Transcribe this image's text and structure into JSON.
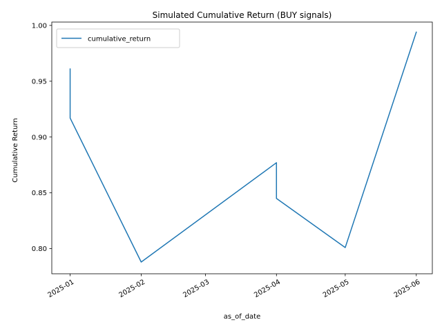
{
  "chart_data": {
    "type": "line",
    "title": "Simulated Cumulative Return (BUY signals)",
    "xlabel": "as_of_date",
    "ylabel": "Cumulative Return",
    "x_type": "date",
    "xlim": [
      "2024-12-24",
      "2025-06-08"
    ],
    "ylim": [
      0.7775,
      1.003
    ],
    "x_ticks": [
      "2025-01-01",
      "2025-02-01",
      "2025-03-01",
      "2025-04-01",
      "2025-05-01",
      "2025-06-01"
    ],
    "x_tick_labels": [
      "2025-01",
      "2025-02",
      "2025-03",
      "2025-04",
      "2025-05",
      "2025-06"
    ],
    "y_ticks": [
      0.8,
      0.85,
      0.9,
      0.95,
      1.0
    ],
    "y_tick_labels": [
      "0.80",
      "0.85",
      "0.90",
      "0.95",
      "1.00"
    ],
    "legend_position": "top-left",
    "grid": false,
    "series": [
      {
        "name": "cumulative_return",
        "color": "#1f77b4",
        "x": [
          "2025-01-01",
          "2025-01-01",
          "2025-02-01",
          "2025-04-01",
          "2025-04-01",
          "2025-05-01",
          "2025-06-01"
        ],
        "values": [
          0.961,
          0.917,
          0.788,
          0.877,
          0.845,
          0.801,
          0.994
        ]
      }
    ]
  }
}
